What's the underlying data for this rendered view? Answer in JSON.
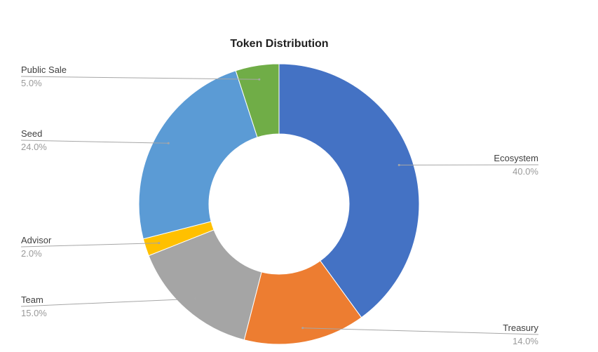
{
  "chart_data": {
    "type": "pie",
    "style": "donut",
    "title": "Token Distribution",
    "slices": [
      {
        "label": "Ecosystem",
        "value": 40.0,
        "display": "40.0%",
        "color": "#4472C4"
      },
      {
        "label": "Treasury",
        "value": 14.0,
        "display": "14.0%",
        "color": "#ED7D31"
      },
      {
        "label": "Team",
        "value": 15.0,
        "display": "15.0%",
        "color": "#A5A5A5"
      },
      {
        "label": "Advisor",
        "value": 2.0,
        "display": "2.0%",
        "color": "#FFC000"
      },
      {
        "label": "Seed",
        "value": 24.0,
        "display": "24.0%",
        "color": "#5B9BD5"
      },
      {
        "label": "Public Sale",
        "value": 5.0,
        "display": "5.0%",
        "color": "#70AD47"
      }
    ]
  }
}
